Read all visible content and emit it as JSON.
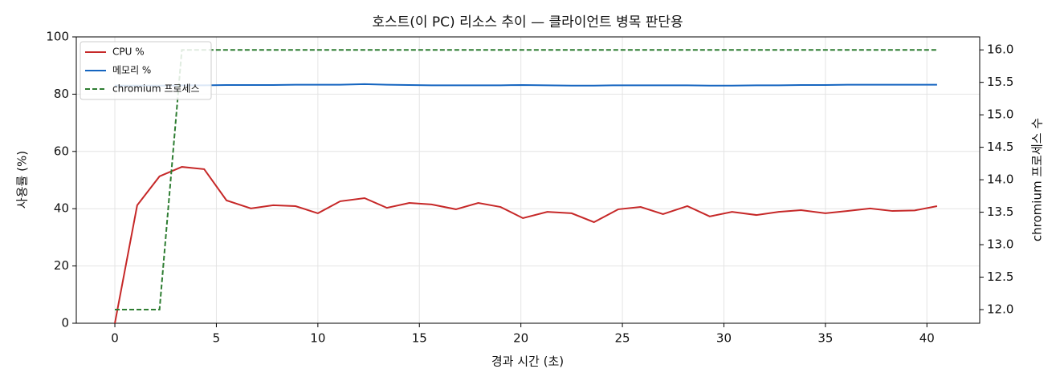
{
  "chart_data": {
    "type": "line",
    "title": "호스트(이 PC) 리소스 추이 — 클라이언트 병목 판단용",
    "xlabel": "경과 시간 (초)",
    "ylabel": "사용률 (%)",
    "y2label": "chromium 프로세스 수",
    "x": [
      0,
      1.1,
      2.2,
      3.3,
      4.4,
      5.5,
      6.7,
      7.8,
      8.9,
      10.0,
      11.1,
      12.3,
      13.4,
      14.5,
      15.6,
      16.8,
      17.9,
      19.0,
      20.1,
      21.3,
      22.5,
      23.6,
      24.8,
      25.9,
      27.0,
      28.2,
      29.3,
      30.4,
      31.6,
      32.7,
      33.8,
      35.0,
      36.1,
      37.2,
      38.3,
      39.4,
      40.5
    ],
    "series": [
      {
        "name": "CPU %",
        "color": "#c62828",
        "axis": "y",
        "dash": false,
        "values": [
          0,
          41.2,
          51.3,
          54.6,
          53.8,
          42.9,
          40.1,
          41.2,
          40.9,
          38.4,
          42.6,
          43.7,
          40.3,
          42.0,
          41.5,
          39.8,
          42.0,
          40.6,
          36.7,
          38.9,
          38.4,
          35.3,
          39.8,
          40.6,
          38.1,
          40.9,
          37.3,
          38.9,
          37.8,
          38.9,
          39.5,
          38.4,
          39.2,
          40.1,
          39.2,
          39.4,
          40.9
        ]
      },
      {
        "name": "메모리 %",
        "color": "#1565c0",
        "axis": "y",
        "dash": false,
        "values": [
          83.0,
          83.0,
          83.0,
          83.1,
          83.1,
          83.2,
          83.2,
          83.2,
          83.3,
          83.3,
          83.3,
          83.5,
          83.3,
          83.2,
          83.1,
          83.1,
          83.1,
          83.1,
          83.2,
          83.1,
          83.0,
          83.0,
          83.1,
          83.1,
          83.1,
          83.1,
          83.0,
          83.0,
          83.1,
          83.1,
          83.2,
          83.2,
          83.3,
          83.3,
          83.3,
          83.3,
          83.3
        ]
      },
      {
        "name": "chromium 프로세스",
        "color": "#2e7d32",
        "axis": "y2",
        "dash": true,
        "values": [
          12,
          12,
          12,
          16,
          16,
          16,
          16,
          16,
          16,
          16,
          16,
          16,
          16,
          16,
          16,
          16,
          16,
          16,
          16,
          16,
          16,
          16,
          16,
          16,
          16,
          16,
          16,
          16,
          16,
          16,
          16,
          16,
          16,
          16,
          16,
          16,
          16
        ]
      }
    ],
    "xlim": [
      -1.9,
      42.6
    ],
    "xticks": [
      0,
      5,
      10,
      15,
      20,
      25,
      30,
      35,
      40
    ],
    "ylim": [
      0,
      100
    ],
    "yticks": [
      0,
      20,
      40,
      60,
      80,
      100
    ],
    "y2lim": [
      11.79,
      16.2
    ],
    "y2ticks": [
      {
        "value": 12,
        "label": "12.0"
      },
      12.5,
      {
        "value": 13,
        "label": "13.0"
      },
      13.5,
      {
        "value": 14,
        "label": "14.0"
      },
      14.5,
      {
        "value": 15,
        "label": "15.0"
      },
      15.5,
      {
        "value": 16,
        "label": "16.0"
      }
    ],
    "grid": true,
    "legend": "upper-left"
  }
}
